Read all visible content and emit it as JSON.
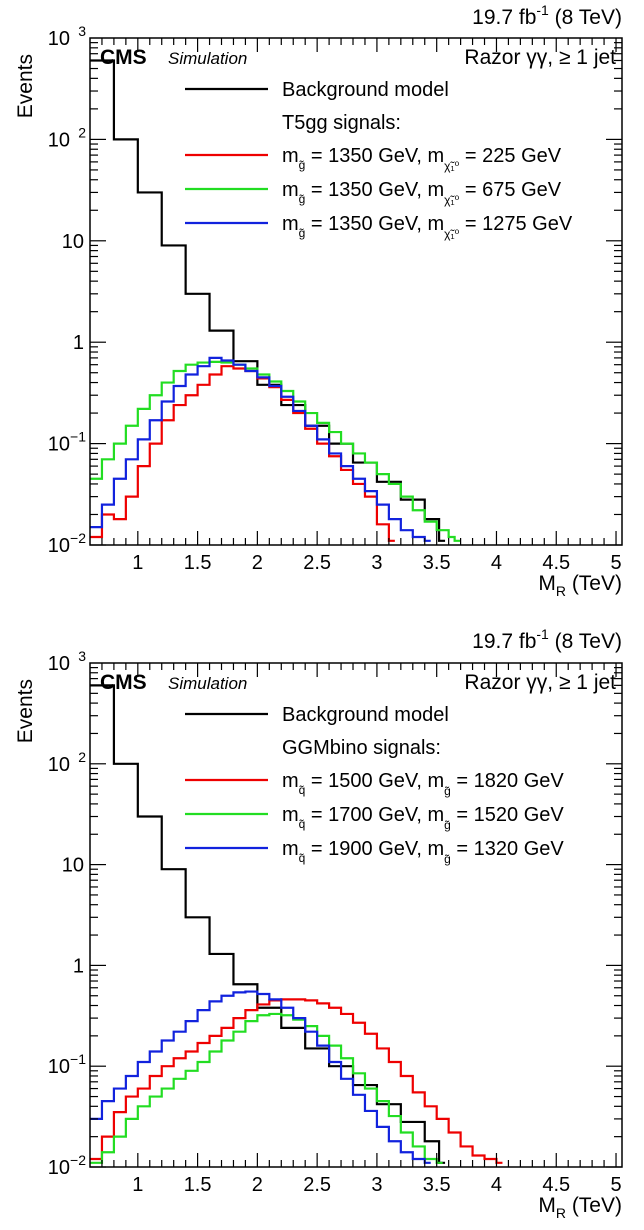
{
  "chart_data": [
    {
      "type": "line",
      "step": true,
      "log_y": true,
      "xlabel": "M",
      "xlabel_sub": "R",
      "xlabel_unit": "(TeV)",
      "ylabel": "Events",
      "xlim": [
        0.6,
        5.05
      ],
      "ylim": [
        0.01,
        1000
      ],
      "x_ticks": [
        "1",
        "1.5",
        "2",
        "2.5",
        "3",
        "3.5",
        "4",
        "4.5",
        "5"
      ],
      "y_ticks": [
        {
          "base": "10",
          "exp": "−2",
          "value": 0.01
        },
        {
          "base": "10",
          "exp": "−1",
          "value": 0.1
        },
        {
          "base": "1",
          "exp": "",
          "value": 1
        },
        {
          "base": "10",
          "exp": "",
          "value": 10
        },
        {
          "base": "10",
          "exp": "2",
          "value": 100
        },
        {
          "base": "10",
          "exp": "3",
          "value": 1000
        }
      ],
      "lumi": {
        "value": "19.7 fb",
        "exp": "-1",
        "energy": "(8 TeV)"
      },
      "cms": "CMS",
      "simulation": "Simulation",
      "channel": "Razor γγ, ≥ 1 jet",
      "legend_header": "T5gg signals:",
      "series": [
        {
          "name": "Background model",
          "color": "#000000",
          "points": [
            [
              0.6,
              600
            ],
            [
              0.8,
              100
            ],
            [
              1.0,
              30
            ],
            [
              1.2,
              9
            ],
            [
              1.4,
              3
            ],
            [
              1.6,
              1.3
            ],
            [
              1.8,
              0.65
            ],
            [
              2.0,
              0.38
            ],
            [
              2.2,
              0.24
            ],
            [
              2.4,
              0.15
            ],
            [
              2.6,
              0.1
            ],
            [
              2.8,
              0.065
            ],
            [
              3.0,
              0.042
            ],
            [
              3.2,
              0.028
            ],
            [
              3.4,
              0.018
            ],
            [
              3.52,
              0.011
            ]
          ]
        },
        {
          "name_parts": [
            "m",
            "g̃",
            " = 1350 GeV, m",
            "χ̃₁⁰",
            " =   225 GeV"
          ],
          "color": "#ee0000",
          "points": [
            [
              0.6,
              0.012
            ],
            [
              0.7,
              0.02
            ],
            [
              0.8,
              0.018
            ],
            [
              0.9,
              0.03
            ],
            [
              1.0,
              0.06
            ],
            [
              1.1,
              0.1
            ],
            [
              1.2,
              0.17
            ],
            [
              1.3,
              0.24
            ],
            [
              1.4,
              0.3
            ],
            [
              1.5,
              0.38
            ],
            [
              1.6,
              0.48
            ],
            [
              1.7,
              0.58
            ],
            [
              1.8,
              0.55
            ],
            [
              1.9,
              0.52
            ],
            [
              2.0,
              0.44
            ],
            [
              2.1,
              0.36
            ],
            [
              2.2,
              0.27
            ],
            [
              2.3,
              0.2
            ],
            [
              2.4,
              0.14
            ],
            [
              2.5,
              0.1
            ],
            [
              2.6,
              0.075
            ],
            [
              2.7,
              0.055
            ],
            [
              2.8,
              0.04
            ],
            [
              2.9,
              0.03
            ],
            [
              3.0,
              0.016
            ],
            [
              3.1,
              0.011
            ]
          ]
        },
        {
          "name_parts": [
            "m",
            "g̃",
            " = 1350 GeV, m",
            "χ̃₁⁰",
            " =   675 GeV"
          ],
          "color": "#22dd22",
          "points": [
            [
              0.6,
              0.045
            ],
            [
              0.7,
              0.07
            ],
            [
              0.8,
              0.1
            ],
            [
              0.9,
              0.15
            ],
            [
              1.0,
              0.22
            ],
            [
              1.1,
              0.3
            ],
            [
              1.2,
              0.4
            ],
            [
              1.3,
              0.52
            ],
            [
              1.4,
              0.6
            ],
            [
              1.5,
              0.63
            ],
            [
              1.6,
              0.64
            ],
            [
              1.7,
              0.63
            ],
            [
              1.8,
              0.6
            ],
            [
              1.9,
              0.55
            ],
            [
              2.0,
              0.48
            ],
            [
              2.1,
              0.41
            ],
            [
              2.2,
              0.33
            ],
            [
              2.3,
              0.26
            ],
            [
              2.4,
              0.2
            ],
            [
              2.5,
              0.16
            ],
            [
              2.6,
              0.13
            ],
            [
              2.7,
              0.1
            ],
            [
              2.8,
              0.08
            ],
            [
              2.9,
              0.065
            ],
            [
              3.0,
              0.05
            ],
            [
              3.1,
              0.04
            ],
            [
              3.2,
              0.03
            ],
            [
              3.3,
              0.022
            ],
            [
              3.4,
              0.017
            ],
            [
              3.5,
              0.014
            ],
            [
              3.6,
              0.012
            ],
            [
              3.65,
              0.011
            ]
          ]
        },
        {
          "name_parts": [
            "m",
            "g̃",
            " = 1350 GeV, m",
            "χ̃₁⁰",
            " = 1275 GeV"
          ],
          "color": "#1122dd",
          "points": [
            [
              0.6,
              0.015
            ],
            [
              0.7,
              0.025
            ],
            [
              0.8,
              0.045
            ],
            [
              0.9,
              0.07
            ],
            [
              1.0,
              0.11
            ],
            [
              1.1,
              0.17
            ],
            [
              1.2,
              0.26
            ],
            [
              1.3,
              0.37
            ],
            [
              1.4,
              0.48
            ],
            [
              1.5,
              0.58
            ],
            [
              1.6,
              0.7
            ],
            [
              1.7,
              0.66
            ],
            [
              1.8,
              0.6
            ],
            [
              1.9,
              0.52
            ],
            [
              2.0,
              0.45
            ],
            [
              2.1,
              0.37
            ],
            [
              2.2,
              0.29
            ],
            [
              2.3,
              0.21
            ],
            [
              2.4,
              0.15
            ],
            [
              2.5,
              0.11
            ],
            [
              2.6,
              0.08
            ],
            [
              2.7,
              0.06
            ],
            [
              2.8,
              0.045
            ],
            [
              2.9,
              0.034
            ],
            [
              3.0,
              0.025
            ],
            [
              3.1,
              0.018
            ],
            [
              3.2,
              0.014
            ],
            [
              3.3,
              0.012
            ],
            [
              3.4,
              0.011
            ]
          ]
        }
      ]
    },
    {
      "type": "line",
      "step": true,
      "log_y": true,
      "xlabel": "M",
      "xlabel_sub": "R",
      "xlabel_unit": "(TeV)",
      "ylabel": "Events",
      "xlim": [
        0.6,
        5.05
      ],
      "ylim": [
        0.01,
        1000
      ],
      "x_ticks": [
        "1",
        "1.5",
        "2",
        "2.5",
        "3",
        "3.5",
        "4",
        "4.5",
        "5"
      ],
      "y_ticks": [
        {
          "base": "10",
          "exp": "−2",
          "value": 0.01
        },
        {
          "base": "10",
          "exp": "−1",
          "value": 0.1
        },
        {
          "base": "1",
          "exp": "",
          "value": 1
        },
        {
          "base": "10",
          "exp": "",
          "value": 10
        },
        {
          "base": "10",
          "exp": "2",
          "value": 100
        },
        {
          "base": "10",
          "exp": "3",
          "value": 1000
        }
      ],
      "lumi": {
        "value": "19.7 fb",
        "exp": "-1",
        "energy": "(8 TeV)"
      },
      "cms": "CMS",
      "simulation": "Simulation",
      "channel": "Razor γγ, ≥ 1 jet",
      "legend_header": "GGMbino signals:",
      "series": [
        {
          "name": "Background model",
          "color": "#000000",
          "points": [
            [
              0.6,
              600
            ],
            [
              0.8,
              100
            ],
            [
              1.0,
              30
            ],
            [
              1.2,
              9
            ],
            [
              1.4,
              3
            ],
            [
              1.6,
              1.3
            ],
            [
              1.8,
              0.65
            ],
            [
              2.0,
              0.38
            ],
            [
              2.2,
              0.24
            ],
            [
              2.4,
              0.15
            ],
            [
              2.6,
              0.1
            ],
            [
              2.8,
              0.065
            ],
            [
              3.0,
              0.042
            ],
            [
              3.2,
              0.028
            ],
            [
              3.4,
              0.018
            ],
            [
              3.52,
              0.011
            ]
          ]
        },
        {
          "name_parts": [
            "m",
            "q̃",
            " = 1500 GeV, m",
            "g̃",
            " = 1820 GeV"
          ],
          "color": "#ee0000",
          "points": [
            [
              0.6,
              0.012
            ],
            [
              0.7,
              0.02
            ],
            [
              0.8,
              0.035
            ],
            [
              0.9,
              0.05
            ],
            [
              1.0,
              0.06
            ],
            [
              1.1,
              0.08
            ],
            [
              1.2,
              0.1
            ],
            [
              1.3,
              0.12
            ],
            [
              1.4,
              0.14
            ],
            [
              1.5,
              0.17
            ],
            [
              1.6,
              0.2
            ],
            [
              1.7,
              0.24
            ],
            [
              1.8,
              0.3
            ],
            [
              1.9,
              0.36
            ],
            [
              2.0,
              0.41
            ],
            [
              2.1,
              0.45
            ],
            [
              2.2,
              0.46
            ],
            [
              2.3,
              0.46
            ],
            [
              2.4,
              0.45
            ],
            [
              2.5,
              0.42
            ],
            [
              2.6,
              0.38
            ],
            [
              2.7,
              0.33
            ],
            [
              2.8,
              0.27
            ],
            [
              2.9,
              0.21
            ],
            [
              3.0,
              0.15
            ],
            [
              3.1,
              0.11
            ],
            [
              3.2,
              0.08
            ],
            [
              3.3,
              0.055
            ],
            [
              3.4,
              0.04
            ],
            [
              3.5,
              0.03
            ],
            [
              3.6,
              0.022
            ],
            [
              3.7,
              0.016
            ],
            [
              3.8,
              0.013
            ],
            [
              3.9,
              0.012
            ],
            [
              4.0,
              0.011
            ]
          ]
        },
        {
          "name_parts": [
            "m",
            "q̃",
            " = 1700 GeV, m",
            "g̃",
            " = 1520 GeV"
          ],
          "color": "#22dd22",
          "points": [
            [
              0.6,
              0.011
            ],
            [
              0.7,
              0.014
            ],
            [
              0.8,
              0.02
            ],
            [
              0.9,
              0.03
            ],
            [
              1.0,
              0.04
            ],
            [
              1.1,
              0.05
            ],
            [
              1.2,
              0.06
            ],
            [
              1.3,
              0.075
            ],
            [
              1.4,
              0.09
            ],
            [
              1.5,
              0.11
            ],
            [
              1.6,
              0.14
            ],
            [
              1.7,
              0.18
            ],
            [
              1.8,
              0.22
            ],
            [
              1.9,
              0.28
            ],
            [
              2.0,
              0.32
            ],
            [
              2.1,
              0.33
            ],
            [
              2.2,
              0.32
            ],
            [
              2.3,
              0.29
            ],
            [
              2.4,
              0.25
            ],
            [
              2.5,
              0.2
            ],
            [
              2.6,
              0.16
            ],
            [
              2.7,
              0.12
            ],
            [
              2.8,
              0.085
            ],
            [
              2.9,
              0.06
            ],
            [
              3.0,
              0.045
            ],
            [
              3.1,
              0.032
            ],
            [
              3.2,
              0.022
            ],
            [
              3.3,
              0.016
            ],
            [
              3.4,
              0.012
            ],
            [
              3.5,
              0.011
            ]
          ]
        },
        {
          "name_parts": [
            "m",
            "q̃",
            " = 1900 GeV, m",
            "g̃",
            " = 1320 GeV"
          ],
          "color": "#1122dd",
          "points": [
            [
              0.6,
              0.03
            ],
            [
              0.7,
              0.045
            ],
            [
              0.8,
              0.06
            ],
            [
              0.9,
              0.08
            ],
            [
              1.0,
              0.11
            ],
            [
              1.1,
              0.14
            ],
            [
              1.2,
              0.18
            ],
            [
              1.3,
              0.22
            ],
            [
              1.4,
              0.28
            ],
            [
              1.5,
              0.36
            ],
            [
              1.6,
              0.44
            ],
            [
              1.7,
              0.5
            ],
            [
              1.8,
              0.54
            ],
            [
              1.9,
              0.55
            ],
            [
              2.0,
              0.52
            ],
            [
              2.1,
              0.46
            ],
            [
              2.2,
              0.38
            ],
            [
              2.3,
              0.3
            ],
            [
              2.4,
              0.22
            ],
            [
              2.5,
              0.16
            ],
            [
              2.6,
              0.11
            ],
            [
              2.7,
              0.075
            ],
            [
              2.8,
              0.052
            ],
            [
              2.9,
              0.036
            ],
            [
              3.0,
              0.025
            ],
            [
              3.1,
              0.018
            ],
            [
              3.2,
              0.014
            ],
            [
              3.3,
              0.012
            ],
            [
              3.4,
              0.011
            ]
          ]
        }
      ]
    }
  ]
}
